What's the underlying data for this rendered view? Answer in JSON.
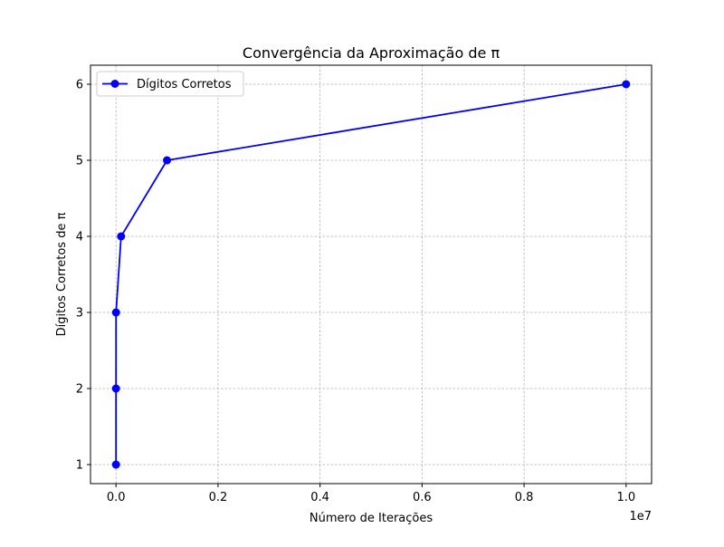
{
  "chart_data": {
    "type": "line",
    "title": "Convergência da Aproximação de π",
    "xlabel": "Número de Iterações",
    "ylabel": "Dígitos Corretos de π",
    "x_offset_label": "1e7",
    "x_scale": 10000000,
    "xlim": [
      -500000,
      10500000
    ],
    "ylim": [
      0.75,
      6.25
    ],
    "x_ticks": [
      0,
      2000000,
      4000000,
      6000000,
      8000000,
      10000000
    ],
    "x_tick_labels": [
      "0.0",
      "0.2",
      "0.4",
      "0.6",
      "0.8",
      "1.0"
    ],
    "y_ticks": [
      1,
      2,
      3,
      4,
      5,
      6
    ],
    "y_tick_labels": [
      "1",
      "2",
      "3",
      "4",
      "5",
      "6"
    ],
    "grid": true,
    "legend_position": "top-left",
    "series": [
      {
        "name": "Dígitos Corretos",
        "color": "#0000ff",
        "marker": "circle",
        "x": [
          10,
          100,
          1000,
          100000,
          1000000,
          10000000
        ],
        "y": [
          1,
          2,
          3,
          4,
          5,
          6
        ]
      }
    ]
  }
}
